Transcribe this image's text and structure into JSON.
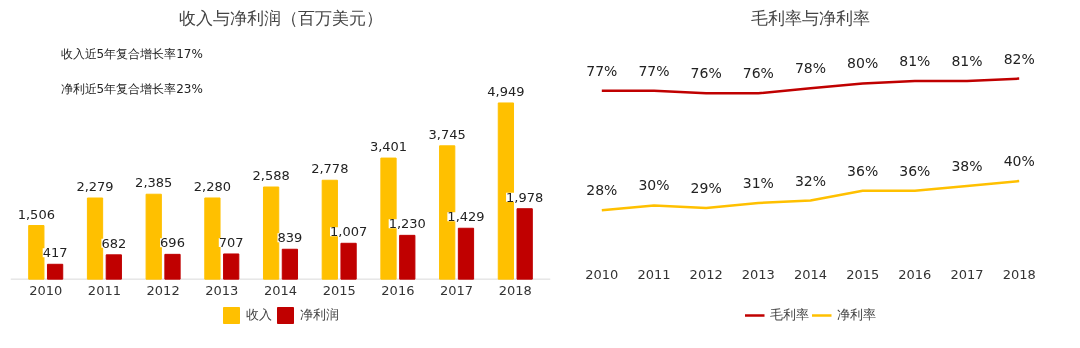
{
  "chart_data": [
    {
      "type": "bar",
      "title": "收入与净利润（百万美元）",
      "categories": [
        "2010",
        "2011",
        "2012",
        "2013",
        "2014",
        "2015",
        "2016",
        "2017",
        "2018"
      ],
      "series": [
        {
          "name": "收入",
          "color": "#ffc000",
          "values": [
            1506,
            2279,
            2385,
            2280,
            2588,
            2778,
            3401,
            3745,
            4949
          ],
          "value_labels": [
            "1,506",
            "2,279",
            "2,385",
            "2,280",
            "2,588",
            "2,778",
            "3,401",
            "3,745",
            "4,949"
          ]
        },
        {
          "name": "净利润",
          "color": "#c00000",
          "values": [
            417,
            682,
            696,
            707,
            839,
            1007,
            1230,
            1429,
            1978
          ],
          "value_labels": [
            "417",
            "682",
            "696",
            "707",
            "839",
            "1,007",
            "1,230",
            "1,429",
            "1,978"
          ]
        }
      ],
      "annotations": [
        "收入近5年复合增长率17%",
        "净利近5年复合增长率23%"
      ],
      "legend": "bottom",
      "grid": false
    },
    {
      "type": "line",
      "title": "毛利率与净利率",
      "categories": [
        "2010",
        "2011",
        "2012",
        "2013",
        "2014",
        "2015",
        "2016",
        "2017",
        "2018"
      ],
      "series": [
        {
          "name": "毛利率",
          "color": "#c00000",
          "values": [
            77,
            77,
            76,
            76,
            78,
            80,
            81,
            81,
            82
          ],
          "value_labels": [
            "77%",
            "77%",
            "76%",
            "76%",
            "78%",
            "80%",
            "81%",
            "81%",
            "82%"
          ]
        },
        {
          "name": "净利率",
          "color": "#ffc000",
          "values": [
            28,
            30,
            29,
            31,
            32,
            36,
            36,
            38,
            40
          ],
          "value_labels": [
            "28%",
            "30%",
            "29%",
            "31%",
            "32%",
            "36%",
            "36%",
            "38%",
            "40%"
          ]
        }
      ],
      "legend": "bottom",
      "grid": false,
      "line_style": "solid"
    }
  ]
}
